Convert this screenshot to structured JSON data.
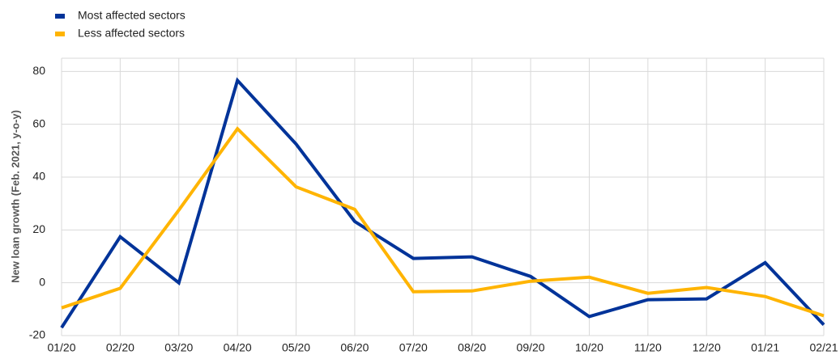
{
  "chart_data": {
    "type": "line",
    "y_label": "New loan growth (Feb. 2021, y-o-y)",
    "categories": [
      "01/20",
      "02/20",
      "03/20",
      "04/20",
      "05/20",
      "06/20",
      "07/20",
      "08/20",
      "09/20",
      "10/20",
      "11/20",
      "12/20",
      "01/21",
      "02/21"
    ],
    "series": [
      {
        "name": "Most affected sectors",
        "color": "#003399",
        "values": [
          -17,
          17.4,
          0,
          76.6,
          52.5,
          23.2,
          9.2,
          9.8,
          2.4,
          -12.8,
          -6.4,
          -6.1,
          7.6,
          -15.9
        ]
      },
      {
        "name": "Less affected sectors",
        "color": "#ffb400",
        "values": [
          -9.5,
          -2.1,
          27.5,
          58.3,
          36.3,
          27.8,
          -3.4,
          -3.1,
          0.6,
          2.1,
          -4,
          -1.8,
          -5.2,
          -12.5
        ]
      }
    ],
    "ylim": [
      -20,
      85
    ],
    "yticks": [
      -20,
      0,
      20,
      40,
      60,
      80
    ],
    "grid": true,
    "legend": "top-left"
  }
}
